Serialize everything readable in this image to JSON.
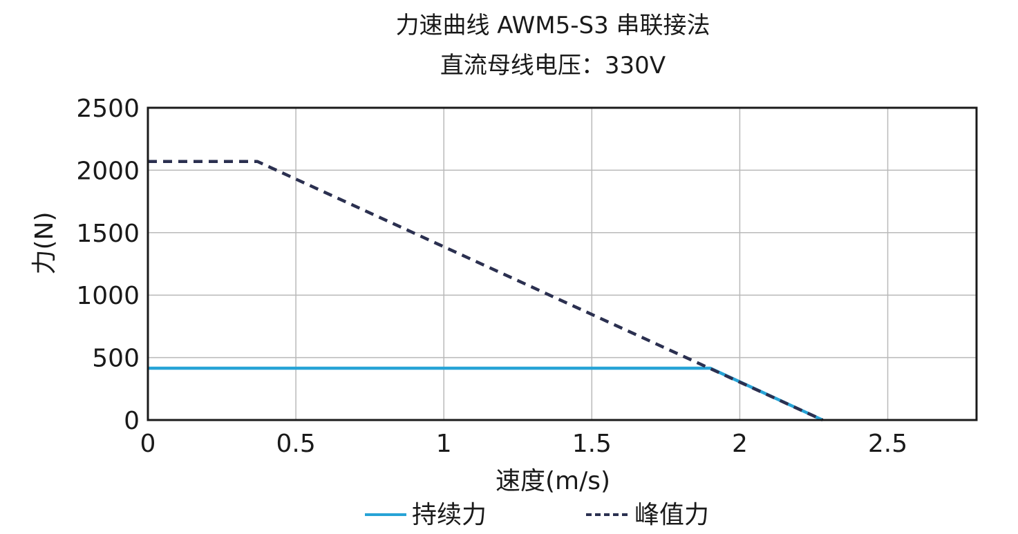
{
  "chart_data": {
    "type": "line",
    "title": "力速曲线 AWM5-S3 串联接法",
    "subtitle": "直流母线电压：330V",
    "xlabel": "速度(m/s)",
    "ylabel": "力(N)",
    "xlim": [
      0,
      2.8
    ],
    "ylim": [
      0,
      2500
    ],
    "x_ticks": [
      0,
      0.5,
      1,
      1.5,
      2,
      2.5
    ],
    "x_tick_labels": [
      "0",
      "0.5",
      "1",
      "1.5",
      "2",
      "2.5"
    ],
    "y_ticks": [
      0,
      500,
      1000,
      1500,
      2000,
      2500
    ],
    "y_tick_labels": [
      "0",
      "500",
      "1000",
      "1500",
      "2000",
      "2500"
    ],
    "grid": true,
    "legend_position": "bottom",
    "series": [
      {
        "name": "持续力",
        "color": "#27a3d6",
        "style": "solid",
        "x": [
          0,
          1.9,
          2.28
        ],
        "y": [
          415,
          415,
          0
        ]
      },
      {
        "name": "峰值力",
        "color": "#2b3050",
        "style": "dashed",
        "x": [
          0,
          0.37,
          2.28
        ],
        "y": [
          2070,
          2070,
          0
        ]
      }
    ]
  }
}
